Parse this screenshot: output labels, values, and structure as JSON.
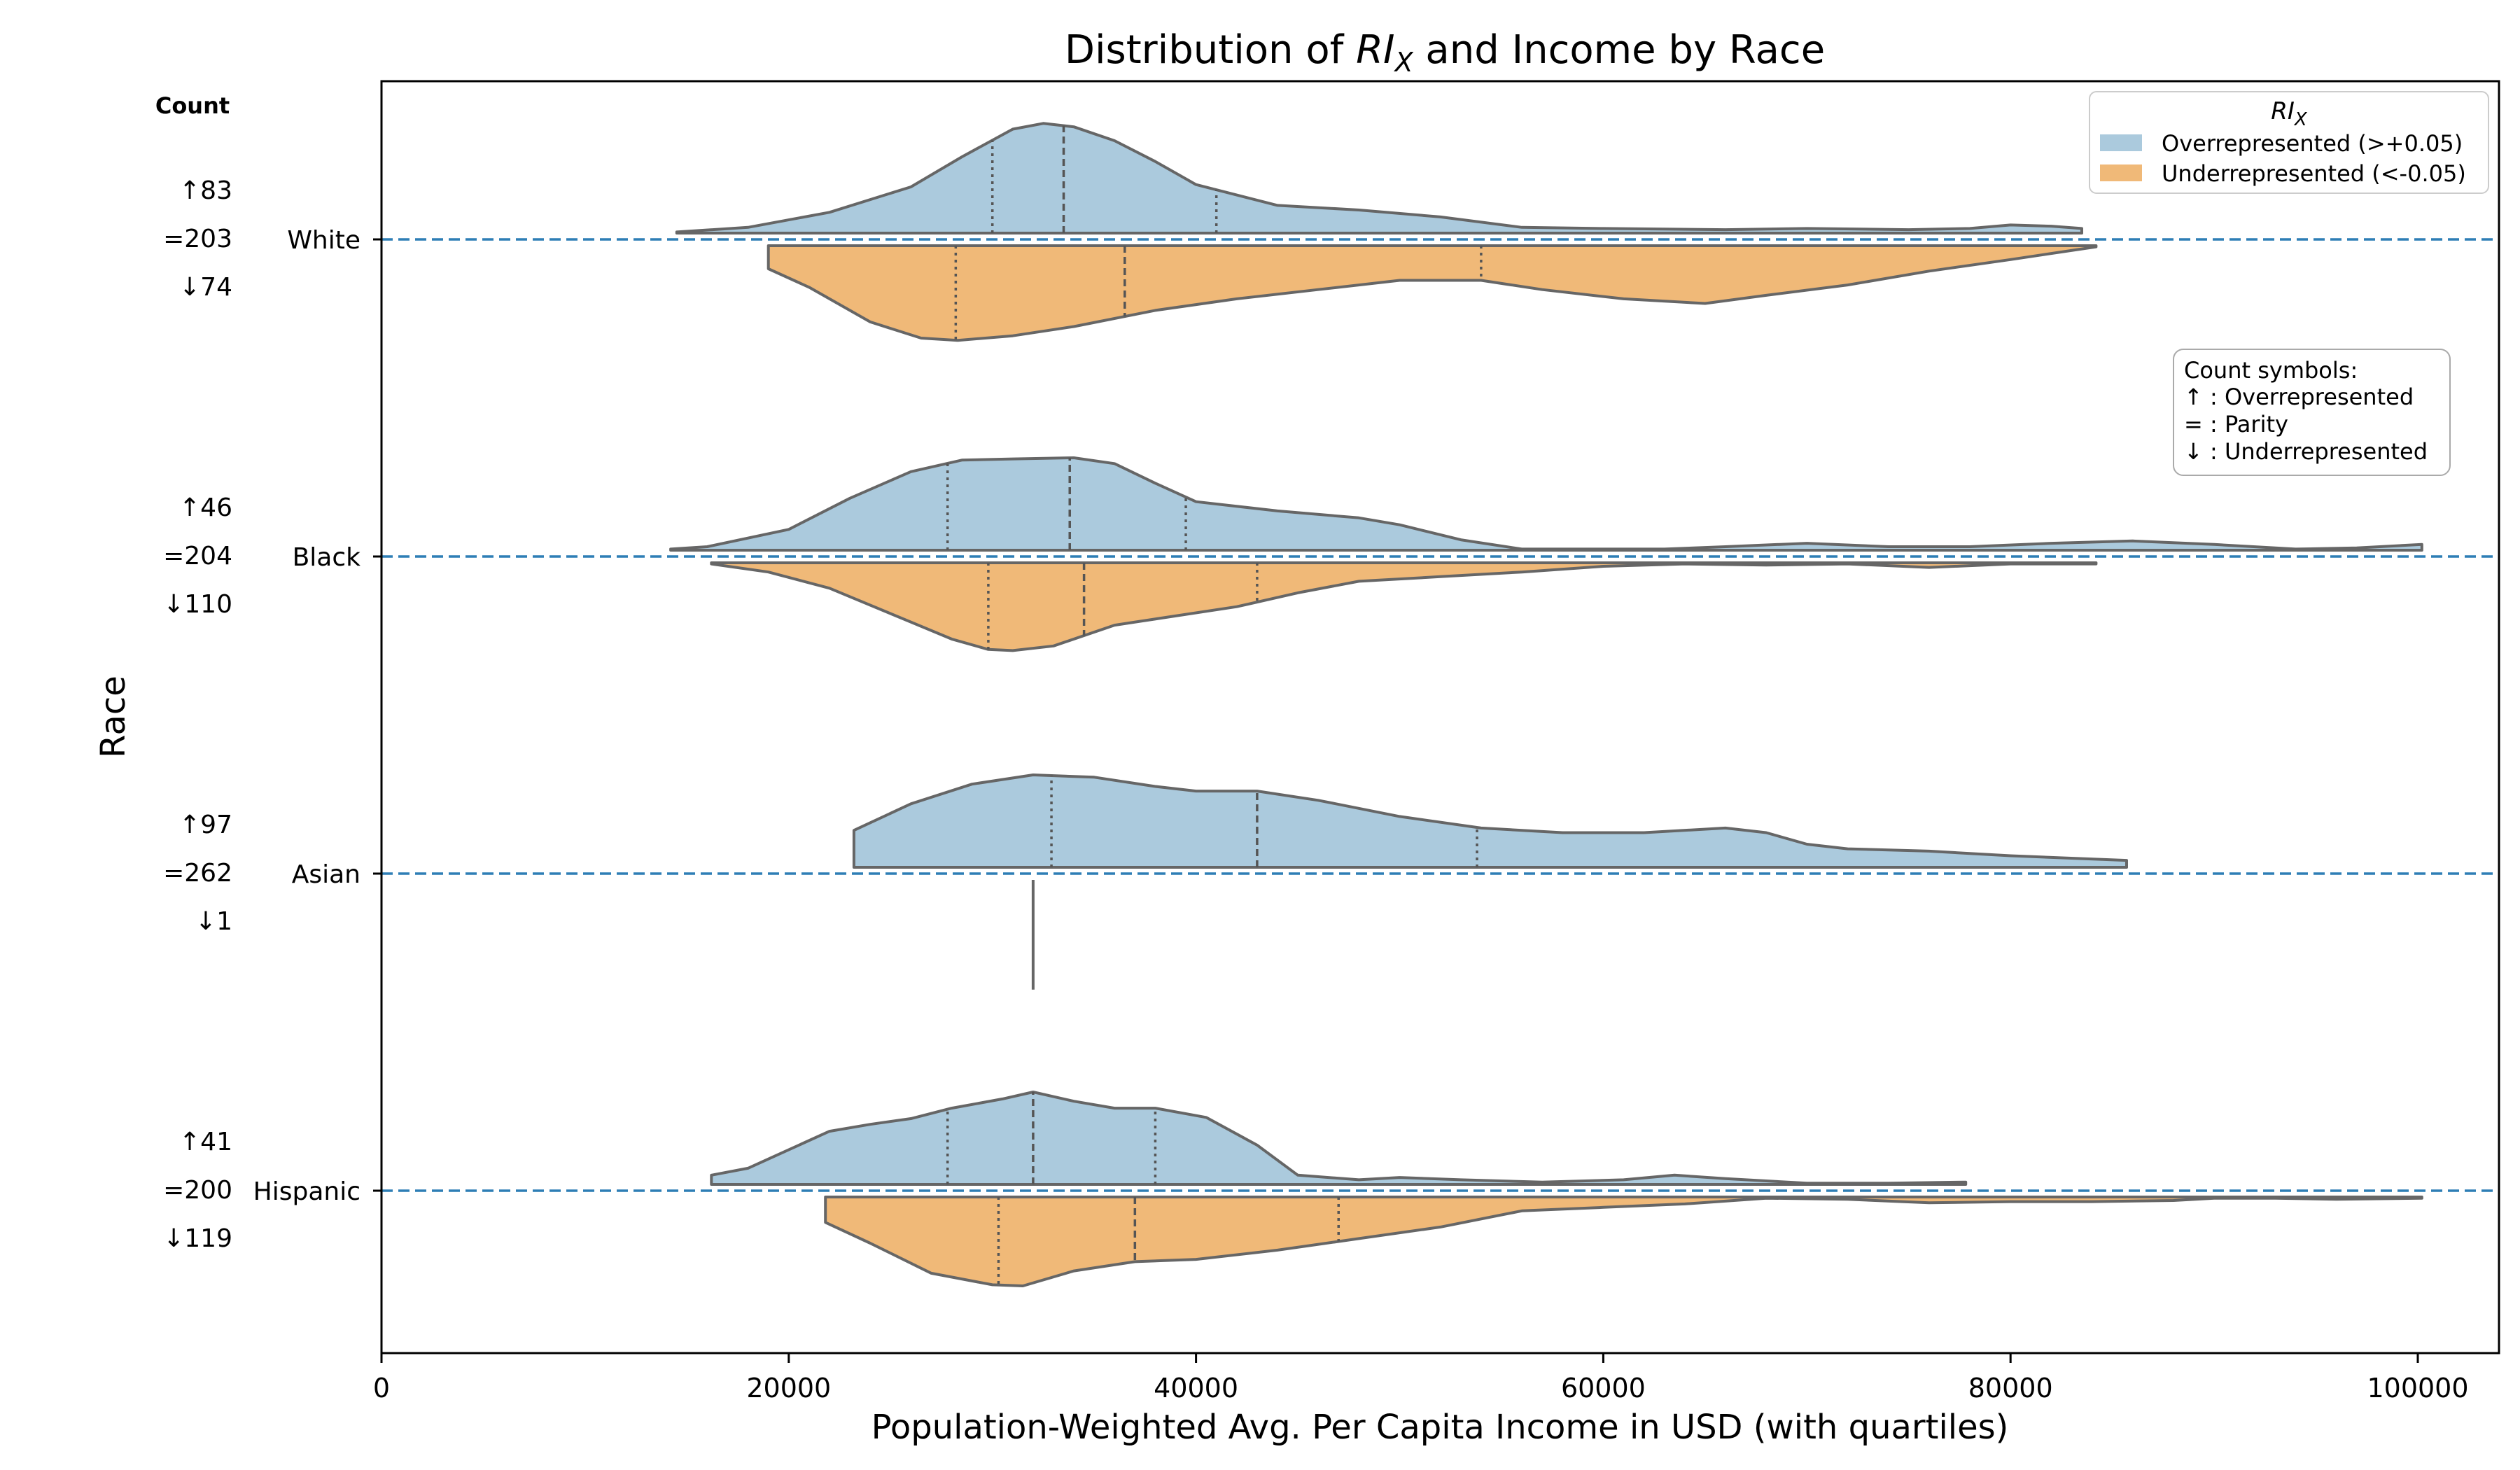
{
  "chart_data": {
    "type": "violin",
    "orientation": "horizontal",
    "split": true,
    "title": "Distribution of RI_X and Income by Race",
    "title_parts": {
      "pre": "Distribution of ",
      "sym": "RI",
      "sub": "X",
      "post": " and Income by Race"
    },
    "xlabel": "Population-Weighted Avg. Per Capita Income in USD (with quartiles)",
    "ylabel": "Race",
    "xlim": [
      0,
      104000
    ],
    "xticks": [
      0,
      20000,
      40000,
      60000,
      80000,
      100000
    ],
    "xtick_labels": [
      "0",
      "20000",
      "40000",
      "60000",
      "80000",
      "100000"
    ],
    "categories": [
      "White",
      "Black",
      "Asian",
      "Hispanic"
    ],
    "count_header": "Count",
    "legend": {
      "title_sym": "RI",
      "title_sub": "X",
      "placement": "upper right",
      "entries": [
        {
          "label": "Overrepresented (>+0.05)",
          "color": "#abcadd"
        },
        {
          "label": "Underrepresented (<-0.05)",
          "color": "#f0b978"
        }
      ]
    },
    "note": {
      "lines": [
        "Count symbols:",
        "↑ : Overrepresented",
        "= : Parity",
        "↓ : Underrepresented"
      ]
    },
    "colors": {
      "over": "#abcadd",
      "under": "#f0b978",
      "outline": "#666666",
      "reference_line": "#2e7eb5"
    },
    "groups": [
      {
        "race": "White",
        "counts": {
          "up": "↑83",
          "eq": "=203",
          "down": "↓74"
        },
        "over": {
          "min": 14500,
          "max": 83500,
          "quartiles": [
            30000,
            33500,
            41000
          ],
          "density": [
            [
              14500,
              0.01
            ],
            [
              18000,
              0.05
            ],
            [
              22000,
              0.18
            ],
            [
              26000,
              0.4
            ],
            [
              28500,
              0.66
            ],
            [
              31000,
              0.9
            ],
            [
              32500,
              0.95
            ],
            [
              34000,
              0.92
            ],
            [
              36000,
              0.8
            ],
            [
              38000,
              0.62
            ],
            [
              40000,
              0.42
            ],
            [
              44000,
              0.24
            ],
            [
              48000,
              0.2
            ],
            [
              52000,
              0.14
            ],
            [
              56000,
              0.05
            ],
            [
              60000,
              0.04
            ],
            [
              66000,
              0.03
            ],
            [
              70000,
              0.04
            ],
            [
              75000,
              0.03
            ],
            [
              78000,
              0.04
            ],
            [
              80000,
              0.07
            ],
            [
              82000,
              0.06
            ],
            [
              83500,
              0.04
            ]
          ]
        },
        "under": {
          "min": 19000,
          "max": 84200,
          "quartiles": [
            28200,
            36500,
            54000
          ],
          "density": [
            [
              19000,
              0.2
            ],
            [
              21000,
              0.36
            ],
            [
              24000,
              0.66
            ],
            [
              26500,
              0.8
            ],
            [
              28300,
              0.82
            ],
            [
              31000,
              0.78
            ],
            [
              34000,
              0.7
            ],
            [
              38000,
              0.56
            ],
            [
              42000,
              0.46
            ],
            [
              46000,
              0.38
            ],
            [
              50000,
              0.3
            ],
            [
              54000,
              0.3
            ],
            [
              57000,
              0.38
            ],
            [
              61000,
              0.46
            ],
            [
              65000,
              0.5
            ],
            [
              68000,
              0.43
            ],
            [
              72000,
              0.34
            ],
            [
              76000,
              0.22
            ],
            [
              80000,
              0.12
            ],
            [
              84200,
              0.01
            ]
          ]
        }
      },
      {
        "race": "Black",
        "counts": {
          "up": "↑46",
          "eq": "=204",
          "down": "↓110"
        },
        "over": {
          "min": 14200,
          "max": 100200,
          "quartiles": [
            27800,
            33800,
            39500
          ],
          "density": [
            [
              14200,
              0.01
            ],
            [
              16000,
              0.03
            ],
            [
              20000,
              0.18
            ],
            [
              23000,
              0.45
            ],
            [
              26000,
              0.68
            ],
            [
              28500,
              0.78
            ],
            [
              31000,
              0.79
            ],
            [
              34000,
              0.8
            ],
            [
              36000,
              0.75
            ],
            [
              38000,
              0.58
            ],
            [
              40000,
              0.42
            ],
            [
              44000,
              0.34
            ],
            [
              48000,
              0.28
            ],
            [
              50000,
              0.22
            ],
            [
              53000,
              0.09
            ],
            [
              56000,
              0.01
            ],
            [
              63000,
              0.01
            ],
            [
              66000,
              0.03
            ],
            [
              70000,
              0.06
            ],
            [
              74000,
              0.03
            ],
            [
              78000,
              0.03
            ],
            [
              82000,
              0.06
            ],
            [
              86000,
              0.08
            ],
            [
              90000,
              0.05
            ],
            [
              94000,
              0.01
            ],
            [
              97000,
              0.02
            ],
            [
              100200,
              0.05
            ]
          ]
        },
        "under": {
          "min": 16200,
          "max": 84200,
          "quartiles": [
            29800,
            34500,
            43000
          ],
          "density": [
            [
              16200,
              0.01
            ],
            [
              19000,
              0.08
            ],
            [
              22000,
              0.22
            ],
            [
              25000,
              0.44
            ],
            [
              28000,
              0.66
            ],
            [
              29800,
              0.75
            ],
            [
              31000,
              0.76
            ],
            [
              33000,
              0.72
            ],
            [
              36000,
              0.54
            ],
            [
              39000,
              0.46
            ],
            [
              42000,
              0.38
            ],
            [
              45000,
              0.26
            ],
            [
              48000,
              0.16
            ],
            [
              52000,
              0.12
            ],
            [
              56000,
              0.08
            ],
            [
              60000,
              0.03
            ],
            [
              64000,
              0.01
            ],
            [
              68000,
              0.02
            ],
            [
              72000,
              0.01
            ],
            [
              76000,
              0.04
            ],
            [
              80000,
              0.01
            ],
            [
              84200,
              0.01
            ]
          ]
        }
      },
      {
        "race": "Asian",
        "counts": {
          "up": "↑97",
          "eq": "=262",
          "down": "↓1"
        },
        "over": {
          "min": 23200,
          "max": 85700,
          "quartiles": [
            32900,
            43000,
            53800
          ],
          "density": [
            [
              23200,
              0.32
            ],
            [
              26000,
              0.55
            ],
            [
              29000,
              0.72
            ],
            [
              32000,
              0.8
            ],
            [
              35000,
              0.78
            ],
            [
              38000,
              0.7
            ],
            [
              40000,
              0.66
            ],
            [
              43000,
              0.66
            ],
            [
              46000,
              0.58
            ],
            [
              50000,
              0.44
            ],
            [
              54000,
              0.34
            ],
            [
              58000,
              0.3
            ],
            [
              62000,
              0.3
            ],
            [
              66000,
              0.34
            ],
            [
              68000,
              0.3
            ],
            [
              70000,
              0.2
            ],
            [
              72000,
              0.16
            ],
            [
              76000,
              0.14
            ],
            [
              80000,
              0.1
            ],
            [
              85700,
              0.06
            ]
          ]
        },
        "under": {
          "single_value": 32000,
          "span": 0.95
        }
      },
      {
        "race": "Hispanic",
        "counts": {
          "up": "↑41",
          "eq": "=200",
          "down": "↓119"
        },
        "over": {
          "min": 16200,
          "max": 77800,
          "quartiles": [
            27800,
            32000,
            38000
          ],
          "density": [
            [
              16200,
              0.08
            ],
            [
              18000,
              0.14
            ],
            [
              20500,
              0.34
            ],
            [
              22000,
              0.46
            ],
            [
              24000,
              0.52
            ],
            [
              26000,
              0.57
            ],
            [
              28000,
              0.66
            ],
            [
              30500,
              0.74
            ],
            [
              32000,
              0.8
            ],
            [
              34000,
              0.72
            ],
            [
              36000,
              0.66
            ],
            [
              38000,
              0.66
            ],
            [
              40500,
              0.58
            ],
            [
              43000,
              0.34
            ],
            [
              45000,
              0.08
            ],
            [
              48000,
              0.04
            ],
            [
              50000,
              0.06
            ],
            [
              53000,
              0.04
            ],
            [
              57000,
              0.02
            ],
            [
              61000,
              0.04
            ],
            [
              63500,
              0.08
            ],
            [
              66000,
              0.05
            ],
            [
              70000,
              0.01
            ],
            [
              74000,
              0.01
            ],
            [
              77800,
              0.02
            ]
          ]
        },
        "under": {
          "min": 21800,
          "max": 100200,
          "quartiles": [
            30300,
            37000,
            47000
          ],
          "density": [
            [
              21800,
              0.22
            ],
            [
              24000,
              0.4
            ],
            [
              27000,
              0.66
            ],
            [
              30000,
              0.76
            ],
            [
              31500,
              0.77
            ],
            [
              34000,
              0.64
            ],
            [
              37000,
              0.56
            ],
            [
              40000,
              0.54
            ],
            [
              44000,
              0.46
            ],
            [
              48000,
              0.36
            ],
            [
              52000,
              0.26
            ],
            [
              56000,
              0.12
            ],
            [
              60000,
              0.09
            ],
            [
              64000,
              0.06
            ],
            [
              68000,
              0.01
            ],
            [
              72000,
              0.02
            ],
            [
              76000,
              0.05
            ],
            [
              80000,
              0.04
            ],
            [
              84000,
              0.04
            ],
            [
              88000,
              0.03
            ],
            [
              90000,
              0.01
            ],
            [
              93000,
              0.01
            ],
            [
              96000,
              0.02
            ],
            [
              100200,
              0.01
            ]
          ]
        }
      }
    ]
  }
}
